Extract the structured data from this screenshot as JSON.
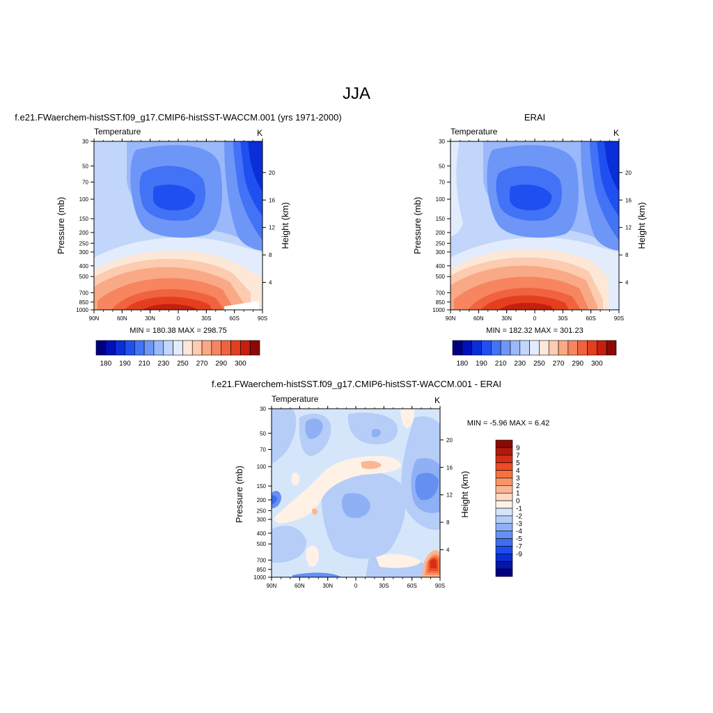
{
  "figure_title": "JJA",
  "chart_data": [
    {
      "type": "contour",
      "id": "model",
      "title": "f.e21.FWaerchem-histSST.f09_g17.CMIP6-histSST-WACCM.001 (yrs 1971-2000)",
      "left_label": "Temperature",
      "right_label": "K",
      "ylabel": "Pressure (mb)",
      "ylabel_right": "Height (km)",
      "x_ticks": [
        "90N",
        "60N",
        "30N",
        "0",
        "30S",
        "60S",
        "90S"
      ],
      "y_ticks": [
        "30",
        "50",
        "70",
        "100",
        "150",
        "200",
        "250",
        "300",
        "400",
        "500",
        "700",
        "850",
        "1000"
      ],
      "y_ticks_right": [
        "20",
        "16",
        "12",
        "8",
        "4"
      ],
      "stats": "MIN = 180.38  MAX = 298.75",
      "levels": [
        180,
        185,
        190,
        195,
        200,
        205,
        210,
        215,
        220,
        225,
        230,
        235,
        240,
        245,
        250,
        255,
        260,
        265,
        270,
        275,
        280,
        285,
        290,
        295,
        300
      ],
      "colorbar_labels": [
        "180",
        "190",
        "210",
        "230",
        "250",
        "270",
        "290",
        "300"
      ],
      "colors": [
        "#00007f",
        "#0010b8",
        "#0a2ed8",
        "#1f4ff0",
        "#4272f5",
        "#6d96f7",
        "#9ab8fa",
        "#c2d6fb",
        "#e2ecfc",
        "#fde8d8",
        "#fccbb0",
        "#f9a985",
        "#f68560",
        "#f1623e",
        "#e33f1f",
        "#c4200f",
        "#8b0a05"
      ]
    },
    {
      "type": "contour",
      "id": "erai",
      "title": "ERAI",
      "left_label": "Temperature",
      "right_label": "K",
      "ylabel": "Pressure (mb)",
      "ylabel_right": "Height (km)",
      "x_ticks": [
        "90N",
        "60N",
        "30N",
        "0",
        "30S",
        "60S",
        "90S"
      ],
      "y_ticks": [
        "30",
        "50",
        "70",
        "100",
        "150",
        "200",
        "250",
        "300",
        "400",
        "500",
        "700",
        "850",
        "1000"
      ],
      "y_ticks_right": [
        "20",
        "16",
        "12",
        "8",
        "4"
      ],
      "stats": "MIN = 182.32  MAX = 301.23",
      "colorbar_labels": [
        "180",
        "190",
        "210",
        "230",
        "250",
        "270",
        "290",
        "300"
      ],
      "colors": [
        "#00007f",
        "#0010b8",
        "#0a2ed8",
        "#1f4ff0",
        "#4272f5",
        "#6d96f7",
        "#9ab8fa",
        "#c2d6fb",
        "#e2ecfc",
        "#fde8d8",
        "#fccbb0",
        "#f9a985",
        "#f68560",
        "#f1623e",
        "#e33f1f",
        "#c4200f",
        "#8b0a05"
      ]
    },
    {
      "type": "contour",
      "id": "diff",
      "title": "f.e21.FWaerchem-histSST.f09_g17.CMIP6-histSST-WACCM.001 - ERAI",
      "left_label": "Temperature",
      "right_label": "K",
      "ylabel": "Pressure (mb)",
      "ylabel_right": "Height (km)",
      "x_ticks": [
        "90N",
        "60N",
        "30N",
        "0",
        "30S",
        "60S",
        "90S"
      ],
      "y_ticks": [
        "30",
        "50",
        "70",
        "100",
        "150",
        "200",
        "250",
        "300",
        "400",
        "500",
        "700",
        "850",
        "1000"
      ],
      "y_ticks_right": [
        "20",
        "16",
        "12",
        "8",
        "4"
      ],
      "stats": "MIN =  -5.96  MAX =   6.42",
      "levels": [
        -9,
        -7,
        -5,
        -4,
        -3,
        -2,
        -1,
        0,
        1,
        2,
        3,
        4,
        5,
        7,
        9
      ],
      "colorbar_labels": [
        "9",
        "7",
        "5",
        "4",
        "3",
        "2",
        "1",
        "0",
        "-1",
        "-2",
        "-3",
        "-4",
        "-5",
        "-7",
        "-9"
      ],
      "colors": [
        "#8b0a05",
        "#b01a0c",
        "#d42e15",
        "#ee4b26",
        "#f6713f",
        "#f99466",
        "#fbb793",
        "#fdd9c4",
        "#fff1e6",
        "#d6e6fa",
        "#b5cdf7",
        "#8fb0f5",
        "#668ff2",
        "#3f6ef0",
        "#1d4ce8",
        "#0a2ed2",
        "#0416a8",
        "#00007f"
      ]
    }
  ]
}
